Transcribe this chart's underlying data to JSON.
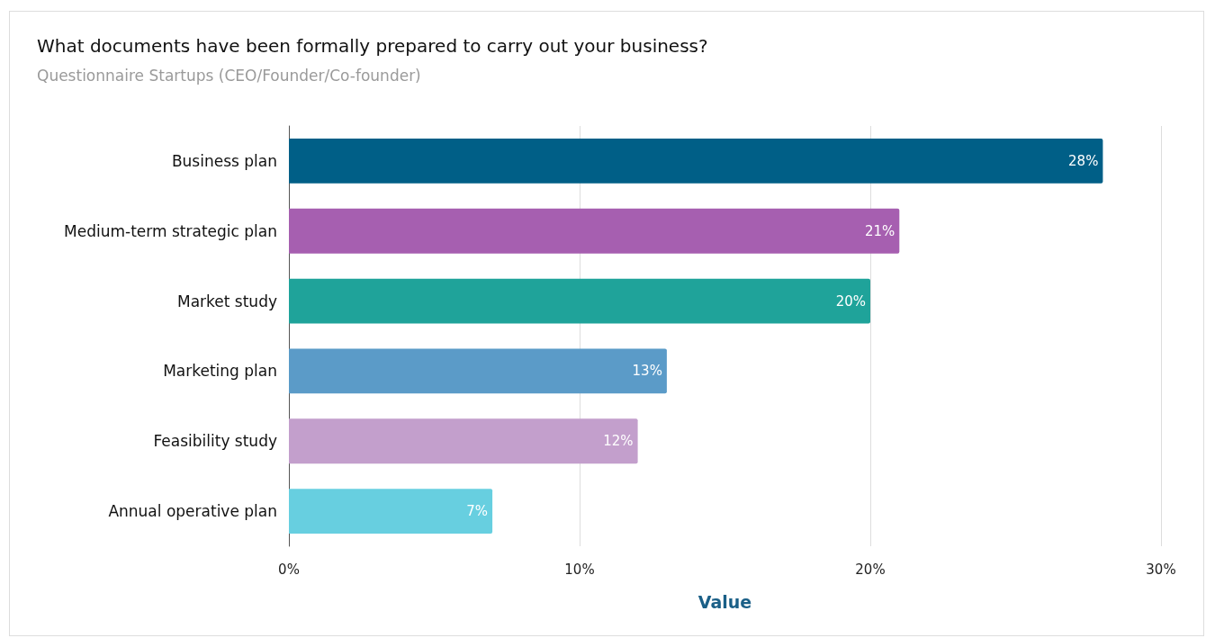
{
  "chart_data": {
    "type": "bar",
    "orientation": "horizontal",
    "title": "What documents have been formally prepared to carry out your business?",
    "subtitle": "Questionnaire Startups (CEO/Founder/Co-founder)",
    "xlabel": "Value",
    "categories": [
      "Business plan",
      "Medium-term strategic plan",
      "Market study",
      "Marketing plan",
      "Feasibility study",
      "Annual operative plan"
    ],
    "values": [
      28,
      21,
      20,
      13,
      12,
      7
    ],
    "colors": [
      "#005f87",
      "#a65fb0",
      "#1fa39a",
      "#5b9bc8",
      "#c39fcc",
      "#67cfe0"
    ],
    "value_labels": [
      "28%",
      "21%",
      "20%",
      "13%",
      "12%",
      "7%"
    ],
    "xlim": [
      0,
      30
    ],
    "xticks": [
      {
        "value": 0,
        "label": "0%"
      },
      {
        "value": 10,
        "label": "10%"
      },
      {
        "value": 20,
        "label": "20%"
      },
      {
        "value": 30,
        "label": "30%"
      }
    ],
    "grid": "x"
  }
}
